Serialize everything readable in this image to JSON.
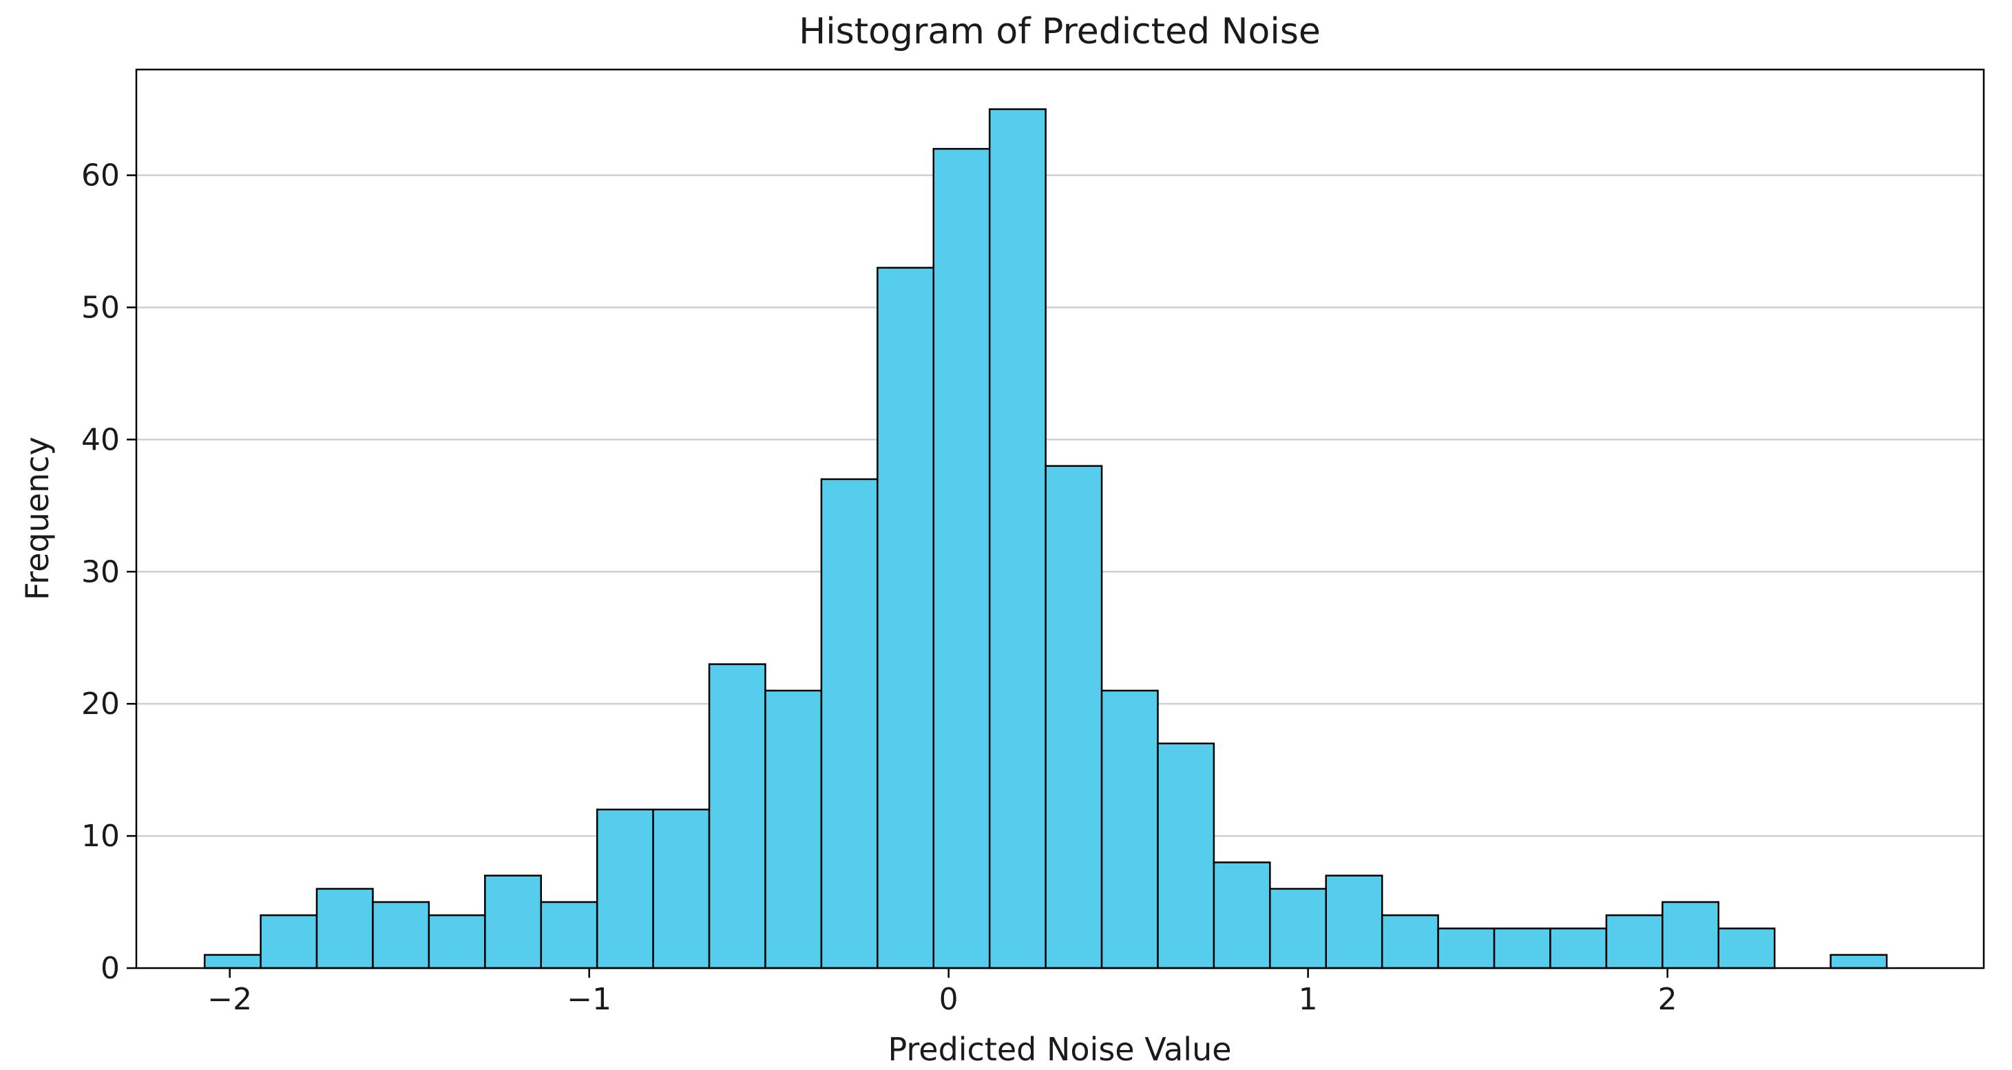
{
  "chart_data": {
    "type": "bar",
    "title": "Histogram of Predicted Noise",
    "xlabel": "Predicted Noise Value",
    "ylabel": "Frequency",
    "xlim": [
      -2.26,
      2.88
    ],
    "ylim": [
      0,
      68
    ],
    "x_ticks": [
      -2,
      -1,
      0,
      1,
      2
    ],
    "x_tick_labels": [
      "−2",
      "−1",
      "0",
      "1",
      "2"
    ],
    "y_ticks": [
      0,
      10,
      20,
      30,
      40,
      50,
      60
    ],
    "y_tick_labels": [
      "0",
      "10",
      "20",
      "30",
      "40",
      "50",
      "60"
    ],
    "grid": "y",
    "bin_edges": [
      -2.07,
      -1.914,
      -1.758,
      -1.602,
      -1.446,
      -1.29,
      -1.134,
      -0.978,
      -0.822,
      -0.666,
      -0.51,
      -0.354,
      -0.198,
      -0.042,
      0.114,
      0.27,
      0.426,
      0.582,
      0.738,
      0.894,
      1.05,
      1.206,
      1.362,
      1.518,
      1.674,
      1.83,
      1.986,
      2.142,
      2.298,
      2.454,
      2.61
    ],
    "counts": [
      1,
      4,
      6,
      5,
      4,
      7,
      5,
      12,
      12,
      23,
      21,
      37,
      53,
      62,
      65,
      38,
      21,
      17,
      8,
      6,
      7,
      4,
      3,
      3,
      3,
      4,
      5,
      3,
      0,
      1
    ],
    "colors": {
      "bar_fill": "#56cdec",
      "bar_edge": "#000000",
      "grid": "#cfcfcf",
      "axes": "#000000"
    }
  }
}
